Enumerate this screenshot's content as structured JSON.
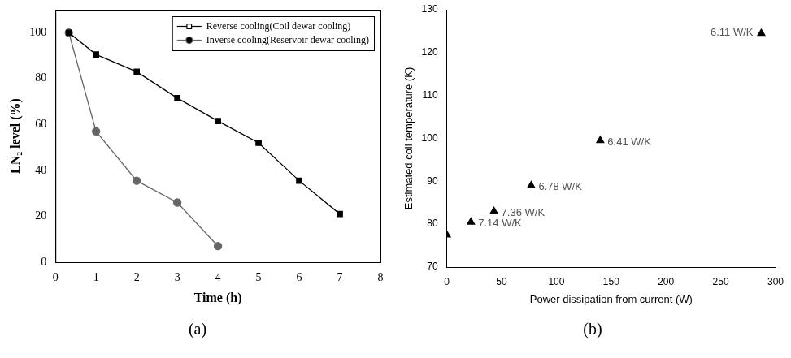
{
  "chart_data": [
    {
      "type": "line",
      "caption": "(a)",
      "x_label": "Time (h)",
      "y_label": "LN₂ level (%)",
      "xlim": [
        0,
        8
      ],
      "xticks": [
        0,
        1,
        2,
        3,
        4,
        5,
        6,
        7,
        8
      ],
      "ylim": [
        0,
        110
      ],
      "yticks": [
        0,
        20,
        40,
        60,
        80,
        100
      ],
      "grid": false,
      "legend": "upper right",
      "series": [
        {
          "name": "Reverse cooling(Coil dewar cooling)",
          "color": "#000000",
          "marker": "square",
          "line_style": "solid",
          "x": [
            0.33,
            1,
            2,
            3,
            4,
            5,
            6,
            7
          ],
          "values": [
            100,
            90.5,
            83,
            71.5,
            61.5,
            52,
            35.5,
            21
          ]
        },
        {
          "name": "Inverse cooling(Reservoir dewar cooling)",
          "color": "#666666",
          "marker": "circle",
          "line_style": "solid",
          "x": [
            0.33,
            1,
            2,
            3,
            4
          ],
          "values": [
            100,
            57,
            35.5,
            26,
            7
          ]
        }
      ]
    },
    {
      "type": "scatter",
      "caption": "(b)",
      "x_label": "Power dissipation from current (W)",
      "y_label": "Estimated coil temperature (K)",
      "xlim": [
        0,
        300
      ],
      "xticks": [
        0,
        50,
        100,
        150,
        200,
        250,
        300
      ],
      "ylim": [
        70,
        130
      ],
      "yticks": [
        70,
        80,
        90,
        100,
        110,
        120,
        130
      ],
      "grid": false,
      "series": [
        {
          "color": "#000000",
          "marker": "triangle",
          "x": [
            0,
            22,
            43,
            77,
            140,
            287
          ],
          "values": [
            77.5,
            80.5,
            83,
            89,
            99.5,
            124.5
          ],
          "point_labels": [
            null,
            "7.14 W/K",
            "7.36 W/K",
            "6.78 W/K",
            "6.41 W/K",
            "6.11 W/K"
          ]
        }
      ]
    }
  ]
}
